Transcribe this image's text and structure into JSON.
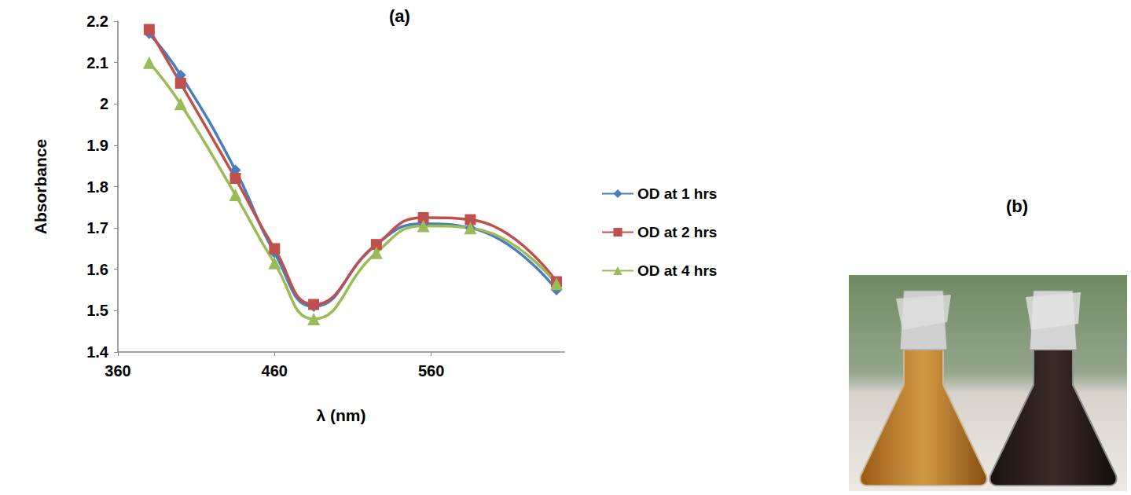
{
  "chart_data": {
    "type": "line",
    "title": "(a)",
    "x_label": "λ (nm)",
    "y_label": "Absorbance",
    "x": [
      380,
      400,
      435,
      460,
      485,
      525,
      555,
      585,
      640
    ],
    "series": [
      {
        "name": "OD at 1 hrs",
        "color": "#4a7ebb",
        "marker": "diamond",
        "values": [
          2.17,
          2.07,
          1.84,
          1.64,
          1.51,
          1.66,
          1.71,
          1.7,
          1.55
        ]
      },
      {
        "name": "OD at 2 hrs",
        "color": "#c0504d",
        "marker": "square",
        "values": [
          2.18,
          2.05,
          1.82,
          1.65,
          1.515,
          1.66,
          1.725,
          1.72,
          1.57
        ]
      },
      {
        "name": "OD at 4 hrs",
        "color": "#9bbb59",
        "marker": "triangle",
        "values": [
          2.1,
          2.0,
          1.78,
          1.615,
          1.48,
          1.64,
          1.705,
          1.7,
          1.565
        ]
      }
    ],
    "xlim": [
      360,
      645
    ],
    "xticks": [
      360,
      460,
      560
    ],
    "ylim": [
      1.4,
      2.2
    ],
    "yticks": [
      1.4,
      1.5,
      1.6,
      1.7,
      1.8,
      1.9,
      2,
      2.1,
      2.2
    ],
    "grid": false,
    "legend": "right",
    "line_style": "smooth"
  },
  "photo": {
    "label": "(b)"
  }
}
